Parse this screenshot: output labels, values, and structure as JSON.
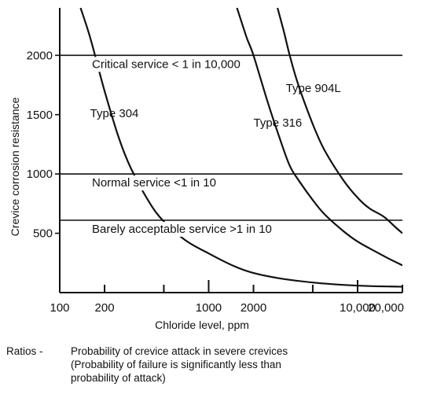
{
  "chart_data": {
    "type": "line",
    "xlabel": "Chloride level, ppm",
    "ylabel": "Crevice corrosion resistance",
    "x_scale": "log",
    "xlim": [
      100,
      20000
    ],
    "ylim": [
      0,
      2400
    ],
    "x_ticks": [
      100,
      200,
      500,
      1000,
      2000,
      5000,
      10000,
      20000
    ],
    "x_tick_labels": [
      "100",
      "200",
      "",
      "1000",
      "2000",
      "",
      "10,000",
      "20,000"
    ],
    "y_ticks": [
      500,
      1000,
      1500,
      2000
    ],
    "y_tick_labels": [
      "500",
      "1000",
      "1500",
      "2000"
    ],
    "grid": false,
    "thresholds": [
      {
        "y": 2000,
        "label": "Critical service < 1 in 10,000"
      },
      {
        "y": 1000,
        "label": "Normal service  <1 in 10"
      },
      {
        "y": 610,
        "label": "Barely acceptable service  >1 in 10"
      }
    ],
    "series": [
      {
        "name": "Type 304",
        "x": [
          138,
          160,
          200,
          250,
          300,
          400,
          500,
          700,
          1000,
          1500,
          2000,
          3000,
          5000,
          8000,
          12000,
          20000
        ],
        "y": [
          2400,
          2150,
          1700,
          1300,
          1050,
          760,
          600,
          440,
          330,
          220,
          165,
          120,
          85,
          65,
          55,
          50
        ]
      },
      {
        "name": "Type 316",
        "x": [
          1550,
          1800,
          2000,
          2500,
          3000,
          3500,
          4000,
          5000,
          6000,
          8000,
          10000,
          13000,
          16000,
          20000
        ],
        "y": [
          2400,
          2150,
          2000,
          1600,
          1300,
          1070,
          950,
          780,
          660,
          520,
          430,
          350,
          290,
          230
        ]
      },
      {
        "name": "Type 904L",
        "x": [
          2900,
          3200,
          3500,
          4000,
          5000,
          6000,
          8000,
          10000,
          12000,
          15000,
          18000,
          20000
        ],
        "y": [
          2400,
          2200,
          2000,
          1750,
          1420,
          1200,
          950,
          800,
          710,
          640,
          550,
          500
        ]
      }
    ],
    "series_labels": [
      {
        "series": "Type 304",
        "text": "Type 304",
        "x": 160,
        "y": 1480
      },
      {
        "series": "Type 316",
        "text": "Type 316",
        "x": 2000,
        "y": 1400
      },
      {
        "series": "Type 904L",
        "text": "Type 904L",
        "x": 3300,
        "y": 1690
      }
    ]
  },
  "note": {
    "lead": "Ratios -",
    "lines": [
      "Probability of crevice attack in severe crevices",
      "(Probability of failure is significantly less than",
      "probability of attack)"
    ]
  }
}
